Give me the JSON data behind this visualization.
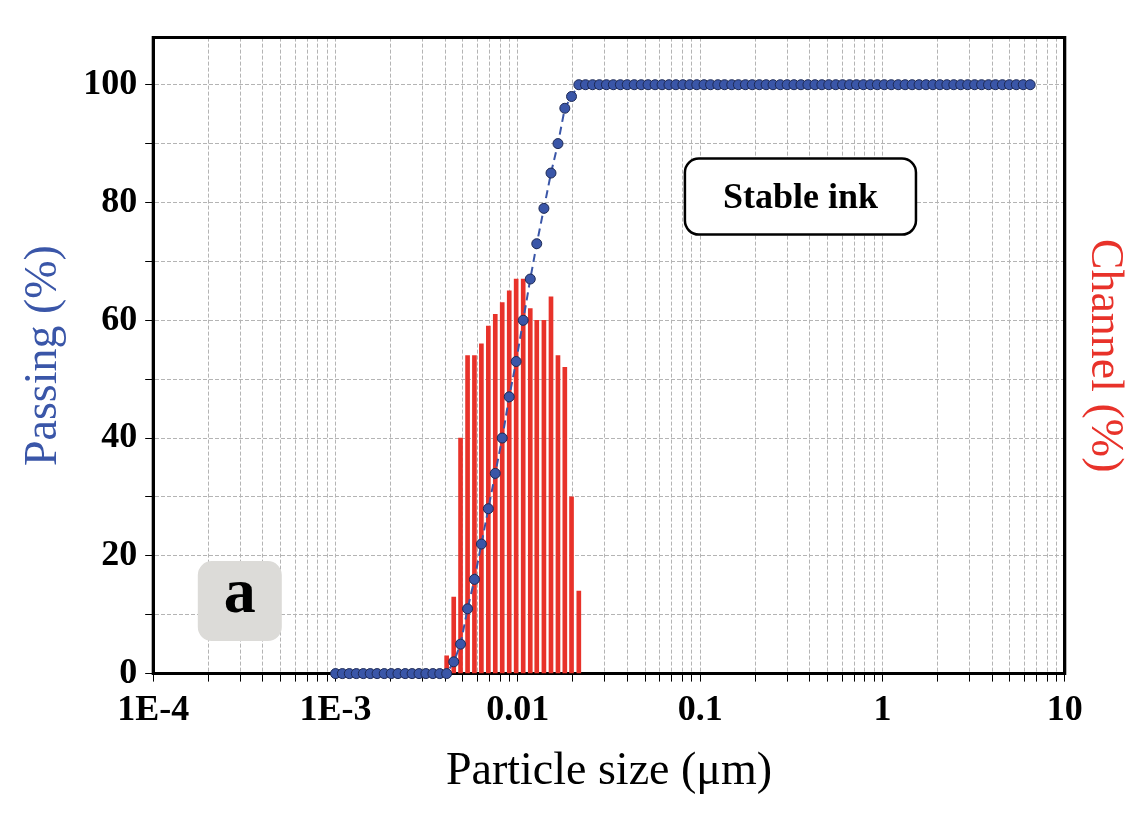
{
  "chart_data": {
    "type": "line",
    "xlabel": "Particle size (μm)",
    "ylabel": "Passing (%)",
    "y2label": "Channel (%)",
    "annotations": [
      "Stable ink",
      "a"
    ],
    "log": "x",
    "grid": true,
    "legend": false,
    "xlim": [
      0.0001,
      10
    ],
    "xticks": [
      {
        "value": 0.0001,
        "label": "1E-4"
      },
      {
        "value": 0.0002,
        "label": null
      },
      {
        "value": 0.0003,
        "label": null
      },
      {
        "value": 0.0004,
        "label": null
      },
      {
        "value": 0.0005,
        "label": null
      },
      {
        "value": 0.0006,
        "label": null
      },
      {
        "value": 0.0007,
        "label": null
      },
      {
        "value": 0.0008,
        "label": null
      },
      {
        "value": 0.0009,
        "label": null
      },
      {
        "value": 0.001,
        "label": "1E-3"
      },
      {
        "value": 0.002,
        "label": null
      },
      {
        "value": 0.003,
        "label": null
      },
      {
        "value": 0.004,
        "label": null
      },
      {
        "value": 0.005,
        "label": null
      },
      {
        "value": 0.006,
        "label": null
      },
      {
        "value": 0.007,
        "label": null
      },
      {
        "value": 0.008,
        "label": null
      },
      {
        "value": 0.009,
        "label": null
      },
      0.01,
      {
        "value": 0.02,
        "label": null
      },
      {
        "value": 0.03,
        "label": null
      },
      {
        "value": 0.04,
        "label": null
      },
      {
        "value": 0.05,
        "label": null
      },
      {
        "value": 0.06,
        "label": null
      },
      {
        "value": 0.07,
        "label": null
      },
      {
        "value": 0.08,
        "label": null
      },
      {
        "value": 0.09,
        "label": null
      },
      0.1,
      {
        "value": 0.2,
        "label": null
      },
      {
        "value": 0.3,
        "label": null
      },
      {
        "value": 0.4,
        "label": null
      },
      {
        "value": 0.5,
        "label": null
      },
      {
        "value": 0.6,
        "label": null
      },
      {
        "value": 0.7,
        "label": null
      },
      {
        "value": 0.8,
        "label": null
      },
      {
        "value": 0.9,
        "label": null
      },
      1,
      {
        "value": 2,
        "label": null
      },
      {
        "value": 3,
        "label": null
      },
      {
        "value": 4,
        "label": null
      },
      {
        "value": 5,
        "label": null
      },
      {
        "value": 6,
        "label": null
      },
      {
        "value": 7,
        "label": null
      },
      {
        "value": 8,
        "label": null
      },
      {
        "value": 9,
        "label": null
      },
      10
    ],
    "ylim": [
      0,
      108
    ],
    "yticks": [
      0,
      {
        "value": 10,
        "label": null
      },
      20,
      {
        "value": 30,
        "label": null
      },
      40,
      {
        "value": 50,
        "label": null
      },
      60,
      {
        "value": 70,
        "label": null
      },
      80,
      {
        "value": 90,
        "label": null
      },
      100
    ],
    "series": [
      {
        "type": "bar",
        "color": "#e8322a",
        "x": [
          0.00407,
          0.00445,
          0.00485,
          0.0053,
          0.00578,
          0.00631,
          0.00689,
          0.00752,
          0.00821,
          0.00897,
          0.00979,
          0.0107,
          0.0117,
          0.0127,
          0.0139,
          0.0152,
          0.0166,
          0.0181,
          0.0197,
          0.0216
        ],
        "values": [
          3,
          13,
          40,
          54,
          54,
          56,
          59,
          61,
          63,
          65,
          67,
          67,
          62,
          60,
          60,
          64,
          54,
          52,
          30,
          14
        ]
      },
      {
        "color": "#3a56a8",
        "marker": "circle",
        "line_style": "dashed",
        "x": [
          0.001,
          0.00109,
          0.00119,
          0.0013,
          0.00142,
          0.00155,
          0.00169,
          0.00185,
          0.00202,
          0.0022,
          0.00241,
          0.00263,
          0.00287,
          0.00313,
          0.00342,
          0.00373,
          0.00407,
          0.00445,
          0.00485,
          0.0053,
          0.00578,
          0.00631,
          0.00689,
          0.00752,
          0.00821,
          0.00897,
          0.00979,
          0.0107,
          0.0117,
          0.0127,
          0.0139,
          0.0152,
          0.0166,
          0.0181,
          0.0197,
          0.0216,
          0.0235,
          0.0257,
          0.028,
          0.0306,
          0.0334,
          0.0365,
          0.0398,
          0.0435,
          0.0475,
          0.0518,
          0.0566,
          0.0618,
          0.0674,
          0.0736,
          0.0804,
          0.0877,
          0.0958,
          0.105,
          0.114,
          0.125,
          0.136,
          0.149,
          0.162,
          0.177,
          0.193,
          0.211,
          0.23,
          0.251,
          0.275,
          0.3,
          0.327,
          0.357,
          0.39,
          0.426,
          0.465,
          0.507,
          0.554,
          0.604,
          0.66,
          0.72,
          0.786,
          0.859,
          0.937,
          1.023,
          1.117,
          1.22,
          1.331,
          1.454,
          1.587,
          1.732,
          1.891,
          2.065,
          2.254,
          2.46,
          2.686,
          2.932,
          3.201,
          3.495,
          3.815,
          4.165,
          4.547,
          4.964,
          5.42,
          5.916,
          6.459
        ],
        "values": [
          0,
          0,
          0,
          0,
          0,
          0,
          0,
          0,
          0,
          0,
          0,
          0,
          0,
          0,
          0,
          0,
          0,
          2,
          5,
          11,
          16,
          22,
          28,
          34,
          40,
          47,
          53,
          60,
          67,
          73,
          79,
          85,
          90,
          96,
          98,
          100,
          100,
          100,
          100,
          100,
          100,
          100,
          100,
          100,
          100,
          100,
          100,
          100,
          100,
          100,
          100,
          100,
          100,
          100,
          100,
          100,
          100,
          100,
          100,
          100,
          100,
          100,
          100,
          100,
          100,
          100,
          100,
          100,
          100,
          100,
          100,
          100,
          100,
          100,
          100,
          100,
          100,
          100,
          100,
          100,
          100,
          100,
          100,
          100,
          100,
          100,
          100,
          100,
          100,
          100,
          100,
          100,
          100,
          100,
          100,
          100,
          100,
          100,
          100,
          100,
          100
        ]
      }
    ]
  }
}
